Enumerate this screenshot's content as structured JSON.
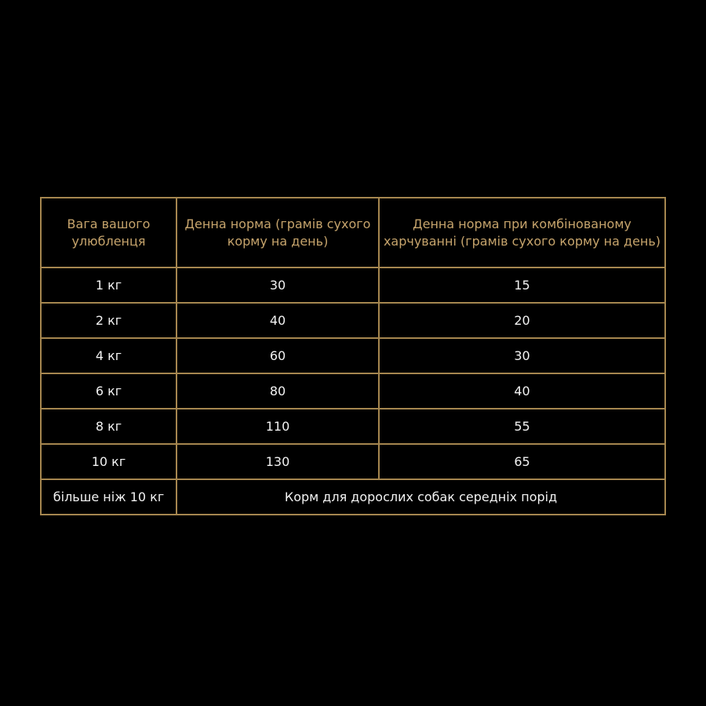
{
  "colors": {
    "background": "#000000",
    "border": "#a5864f",
    "header_text": "#c6a46c",
    "body_text": "#f2f2f2"
  },
  "table": {
    "headers": [
      "Вага вашого улюбленця",
      "Денна норма (грамів сухого корму на день)",
      "Денна норма при комбінованому харчуванні (грамів сухого корму на день)"
    ],
    "rows": [
      [
        "1 кг",
        "30",
        "15"
      ],
      [
        "2 кг",
        "40",
        "20"
      ],
      [
        "4 кг",
        "60",
        "30"
      ],
      [
        "6 кг",
        "80",
        "40"
      ],
      [
        "8 кг",
        "110",
        "55"
      ],
      [
        "10 кг",
        "130",
        "65"
      ]
    ],
    "last_row": {
      "weight": "більше ніж 10 кг",
      "note": "Корм для дорослих собак середніх порід"
    }
  }
}
